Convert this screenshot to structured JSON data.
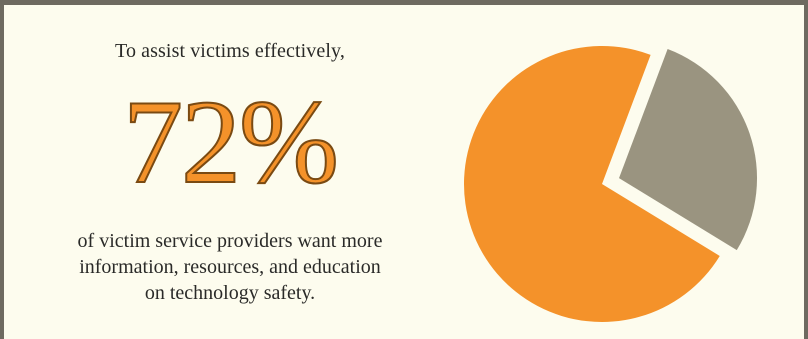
{
  "intro_text": "To assist victims effectively,",
  "headline_value": "72%",
  "description_lines": [
    "of  victim service providers want more",
    "information, resources, and education",
    "on technology safety."
  ],
  "colors": {
    "background": "#fdfcee",
    "border": "#6e6a60",
    "accent": "#f4922a",
    "secondary": "#9a9480"
  },
  "chart_data": {
    "type": "pie",
    "slices": [
      {
        "value": 72,
        "color": "#f4922a",
        "exploded": false
      },
      {
        "value": 28,
        "color": "#9a9480",
        "exploded": true
      }
    ]
  }
}
